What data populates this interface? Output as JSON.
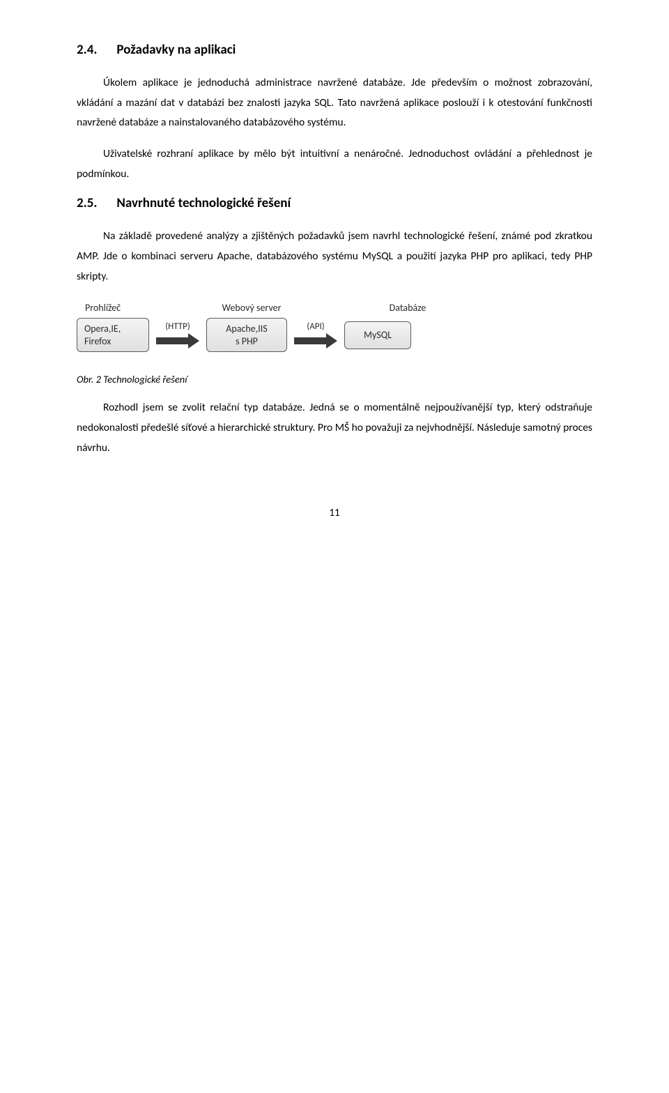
{
  "sections": {
    "s24": {
      "number": "2.4.",
      "title": "Požadavky na aplikaci",
      "p1": "Úkolem aplikace je jednoduchá administrace navržené databáze. Jde především o možnost zobrazování, vkládání a mazání dat v databázi bez znalosti jazyka SQL. Tato navržená aplikace poslouží i k otestování funkčnosti navržené databáze a nainstalovaného databázového systému.",
      "p2": "Uživatelské rozhraní aplikace by mělo být intuitivní a nenáročné. Jednoduchost ovládání a přehlednost je podmínkou."
    },
    "s25": {
      "number": "2.5.",
      "title": "Navrhnuté technologické řešení",
      "p1": "Na základě provedené analýzy a zjištěných požadavků jsem navrhl technologické řešení, známé pod zkratkou AMP. Jde o kombinaci serveru Apache, databázového systému MySQL a použití jazyka PHP pro aplikaci, tedy PHP skripty.",
      "figcaption": "Obr. 2 Technologické řešení",
      "p2": "Rozhodl jsem se zvolit relační typ databáze. Jedná se o momentálně nejpoužívanější typ, který odstraňuje nedokonalosti předešlé síťové a hierarchické struktury. Pro MŠ ho považuji za nejvhodnější. Následuje samotný proces návrhu."
    }
  },
  "diagram": {
    "top_labels": {
      "a": "Prohlížeč",
      "b": "Webový server",
      "c": "Databáze"
    },
    "boxes": {
      "a_line1": "Opera,IE,",
      "a_line2": "Firefox",
      "b_line1": "Apache,IIS",
      "b_line2": "s PHP",
      "c": "MySQL"
    },
    "arrows": {
      "ab": "(HTTP)",
      "bc": "(API)"
    },
    "colors": {
      "box_border": "#5a5a5a",
      "box_bg_top": "#f4f4f4",
      "box_bg_bottom": "#e0e0e0",
      "arrow_fill": "#3a3a3a",
      "text": "#2a2a2a",
      "page_bg": "#ffffff"
    },
    "font_size_labels": 14,
    "box_border_radius": 6
  },
  "page_number": "11"
}
